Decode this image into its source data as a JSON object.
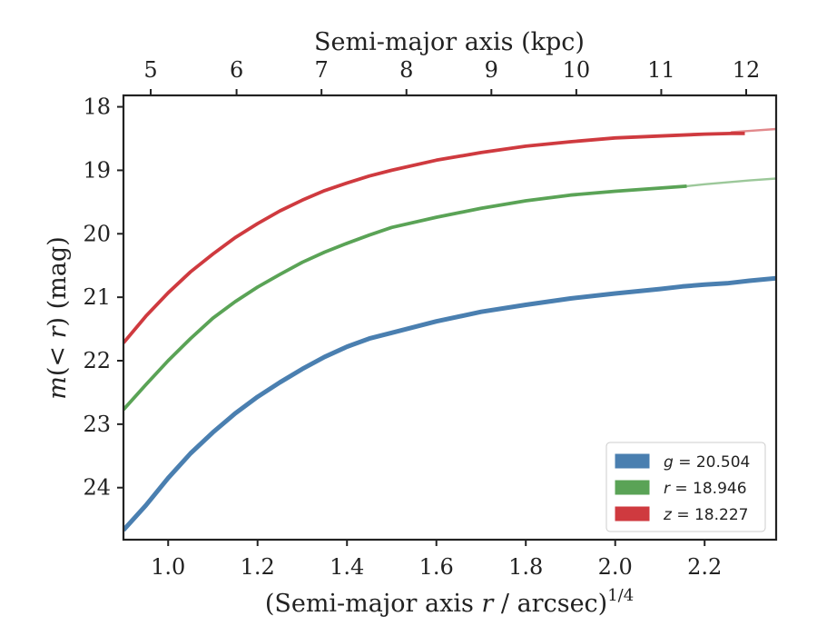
{
  "chart_data": {
    "type": "line",
    "xlabel_prefix": "(Semi-major axis ",
    "xlabel_var": "r",
    "xlabel_mid": " / arcsec)",
    "xlabel_sup": "1/4",
    "ylabel_var": "m",
    "ylabel_mid": "(< ",
    "ylabel_var2": "r",
    "ylabel_end": ") (mag)",
    "top_xlabel": "Semi-major axis (kpc)",
    "xlim": [
      0.9,
      2.36
    ],
    "ylim": [
      24.82,
      17.82
    ],
    "y_inverted": true,
    "x_ticks": [
      1.0,
      1.2,
      1.4,
      1.6,
      1.8,
      2.0,
      2.2
    ],
    "x_tick_labels": [
      "1.0",
      "1.2",
      "1.4",
      "1.6",
      "1.8",
      "2.0",
      "2.2"
    ],
    "y_ticks": [
      18,
      19,
      20,
      21,
      22,
      23,
      24
    ],
    "y_tick_labels": [
      "18",
      "19",
      "20",
      "21",
      "22",
      "23",
      "24"
    ],
    "top_ticks": [
      5,
      6,
      7,
      8,
      9,
      10,
      11,
      12
    ],
    "top_tick_labels": [
      "5",
      "6",
      "7",
      "8",
      "9",
      "10",
      "11",
      "12"
    ],
    "top_axis_x_positions": [
      0.961,
      1.153,
      1.343,
      1.533,
      1.723,
      1.913,
      2.103,
      2.293
    ],
    "grid": false,
    "legend_position": "bottom-right",
    "series": [
      {
        "name": "g = 20.504",
        "band": "g",
        "value": "20.504",
        "color": "#4a7fb0",
        "x": [
          0.9,
          0.95,
          1.0,
          1.05,
          1.1,
          1.15,
          1.2,
          1.25,
          1.3,
          1.35,
          1.4,
          1.45,
          1.5,
          1.6,
          1.7,
          1.8,
          1.9,
          2.0,
          2.1,
          2.15,
          2.2,
          2.25,
          2.3,
          2.36
        ],
        "y": [
          24.67,
          24.28,
          23.85,
          23.46,
          23.13,
          22.83,
          22.57,
          22.34,
          22.13,
          21.94,
          21.78,
          21.65,
          21.56,
          21.38,
          21.23,
          21.12,
          21.02,
          20.94,
          20.87,
          20.83,
          20.8,
          20.78,
          20.74,
          20.7
        ]
      },
      {
        "name": "r = 18.946",
        "band": "r",
        "value": "18.946",
        "color": "#5aa356",
        "x": [
          0.9,
          0.95,
          1.0,
          1.05,
          1.1,
          1.15,
          1.2,
          1.25,
          1.3,
          1.35,
          1.4,
          1.45,
          1.5,
          1.6,
          1.7,
          1.8,
          1.9,
          2.0,
          2.1,
          2.16
        ],
        "y": [
          22.77,
          22.38,
          22.0,
          21.65,
          21.33,
          21.07,
          20.84,
          20.64,
          20.45,
          20.29,
          20.15,
          20.02,
          19.9,
          19.74,
          19.6,
          19.48,
          19.39,
          19.33,
          19.28,
          19.25
        ],
        "extension": {
          "x": [
            2.16,
            2.2,
            2.25,
            2.3,
            2.36
          ],
          "y": [
            19.25,
            19.22,
            19.19,
            19.16,
            19.13
          ]
        }
      },
      {
        "name": "z = 18.227",
        "band": "z",
        "value": "18.227",
        "color": "#cf3a3f",
        "x": [
          0.9,
          0.95,
          1.0,
          1.05,
          1.1,
          1.15,
          1.2,
          1.25,
          1.3,
          1.35,
          1.4,
          1.45,
          1.5,
          1.6,
          1.7,
          1.8,
          1.9,
          2.0,
          2.1,
          2.2,
          2.26,
          2.29
        ],
        "y": [
          21.72,
          21.3,
          20.93,
          20.6,
          20.32,
          20.06,
          19.84,
          19.64,
          19.47,
          19.32,
          19.2,
          19.09,
          19.0,
          18.84,
          18.72,
          18.62,
          18.55,
          18.49,
          18.46,
          18.43,
          18.42,
          18.42
        ],
        "extension": {
          "x": [
            2.26,
            2.3,
            2.36
          ],
          "y": [
            18.4,
            18.38,
            18.35
          ]
        }
      }
    ]
  }
}
